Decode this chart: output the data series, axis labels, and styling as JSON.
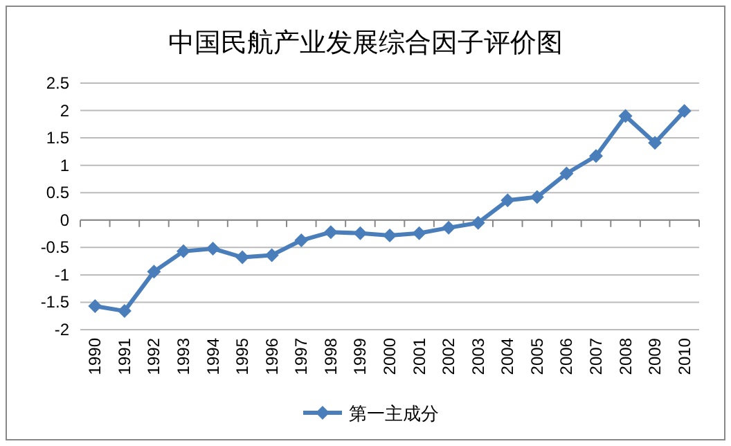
{
  "chart_data": {
    "type": "line",
    "title": "中国民航产业发展综合因子评价图",
    "categories": [
      "1990",
      "1991",
      "1992",
      "1993",
      "1994",
      "1995",
      "1996",
      "1997",
      "1998",
      "1999",
      "2000",
      "2001",
      "2002",
      "2003",
      "2004",
      "2005",
      "2006",
      "2007",
      "2008",
      "2009",
      "2010"
    ],
    "series": [
      {
        "name": "第一主成分",
        "color": "#4a7ebb",
        "values": [
          -1.57,
          -1.66,
          -0.94,
          -0.57,
          -0.52,
          -0.68,
          -0.64,
          -0.37,
          -0.22,
          -0.24,
          -0.28,
          -0.24,
          -0.14,
          -0.05,
          0.36,
          0.42,
          0.85,
          1.17,
          1.9,
          1.41,
          1.99
        ]
      }
    ],
    "ylim": [
      -2,
      2.5
    ],
    "yticks": [
      2.5,
      2,
      1.5,
      1,
      0.5,
      0,
      {
        "value": -0.5,
        "label": "-0.5"
      },
      {
        "value": -1,
        "label": "-1"
      },
      {
        "value": -1.5,
        "label": "-1.5"
      },
      {
        "value": -2,
        "label": "-2"
      }
    ],
    "grid": "y",
    "legend": "bottom",
    "marker": "diamond",
    "line_style": "solid"
  }
}
